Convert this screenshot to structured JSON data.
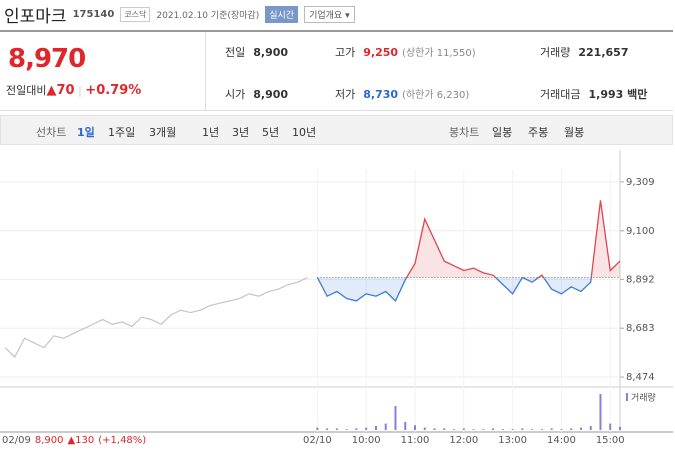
{
  "header": {
    "name": "인포마크",
    "code": "175140",
    "market": "코스닥",
    "date": "2021.02.10 기준(장마감)",
    "realtime": "실시간",
    "overview": "기업개요"
  },
  "quote": {
    "price": "8,970",
    "change_label": "전일대비",
    "change": "▲70",
    "rate": "+0.79%"
  },
  "stats": [
    {
      "label": "전일",
      "value": "8,900"
    },
    {
      "label": "고가",
      "value": "9,250",
      "note": "(상한가 11,550)"
    },
    {
      "label": "거래량",
      "value": "221,657"
    },
    {
      "label": "시가",
      "value": "8,900"
    },
    {
      "label": "저가",
      "value": "8,730",
      "note": "(하한가 6,230)"
    },
    {
      "label": "거래대금",
      "value": "1,993 백만"
    }
  ],
  "tabs": {
    "line_label": "선차트",
    "line": [
      "1일",
      "1주일",
      "3개월",
      "1년",
      "3년",
      "5년",
      "10년"
    ],
    "candle_label": "봉차트",
    "candle": [
      "일봉",
      "주봉",
      "월봉"
    ]
  },
  "chart_data": {
    "type": "line",
    "categories": [
      null,
      null,
      null,
      null,
      null,
      null,
      null,
      null,
      null,
      null,
      null,
      null,
      null,
      null,
      null,
      null,
      null,
      null,
      null,
      null,
      null,
      null,
      null,
      null,
      null,
      null,
      null,
      null,
      null,
      null,
      null,
      null,
      "02/10",
      null,
      null,
      null,
      null,
      "10:00",
      null,
      null,
      null,
      null,
      "11:00",
      null,
      null,
      null,
      null,
      "12:00",
      null,
      null,
      null,
      null,
      "13:00",
      null,
      null,
      null,
      null,
      "14:00",
      null,
      null,
      null,
      null,
      "15:00",
      null
    ],
    "series": [
      {
        "color": "#c4c4c4",
        "values": [
          8600,
          8560,
          8640,
          8620,
          8600,
          8650,
          8640,
          8660,
          8680,
          8700,
          8720,
          8700,
          8710,
          8690,
          8730,
          8720,
          8700,
          8740,
          8760,
          8750,
          8760,
          8780,
          8790,
          8800,
          8810,
          8830,
          8820,
          8840,
          8850,
          8870,
          8880,
          8900,
          null,
          null,
          null,
          null,
          null,
          null,
          null,
          null,
          null,
          null,
          null,
          null,
          null,
          null,
          null,
          null,
          null,
          null,
          null,
          null,
          null,
          null,
          null,
          null,
          null,
          null,
          null,
          null,
          null,
          null,
          null,
          null
        ]
      },
      {
        "color": "#e0464e",
        "down_color": "#3d7bd6",
        "values": [
          null,
          null,
          null,
          null,
          null,
          null,
          null,
          null,
          null,
          null,
          null,
          null,
          null,
          null,
          null,
          null,
          null,
          null,
          null,
          null,
          null,
          null,
          null,
          null,
          null,
          null,
          null,
          null,
          null,
          null,
          null,
          null,
          8900,
          8820,
          8840,
          8810,
          8800,
          8830,
          8820,
          8840,
          8800,
          8890,
          8960,
          9150,
          9060,
          8970,
          8950,
          8930,
          8940,
          8920,
          8910,
          8870,
          8830,
          8900,
          8880,
          8910,
          8850,
          8830,
          8860,
          8840,
          8880,
          9230,
          8930,
          8970
        ]
      }
    ],
    "baseline": 8900,
    "ylim": [
      8440,
      9360
    ],
    "yticks": [
      {
        "value": 8474,
        "label": "8,474"
      },
      {
        "value": 8683,
        "label": "8,683"
      },
      {
        "value": 8892,
        "label": "8,892"
      },
      {
        "value": 9100,
        "label": "9,100"
      },
      {
        "value": 9309,
        "label": "9,309"
      }
    ],
    "grid": true,
    "volume": {
      "label": "거래량",
      "color": "#8b7fd6",
      "ylim": [
        0,
        50
      ],
      "values": [
        0,
        0,
        0,
        0,
        0,
        0,
        0,
        0,
        0,
        0,
        0,
        0,
        0,
        0,
        0,
        0,
        0,
        0,
        0,
        0,
        0,
        0,
        0,
        0,
        0,
        0,
        0,
        0,
        0,
        0,
        0,
        0,
        3,
        2,
        2,
        1,
        2,
        3,
        5,
        8,
        30,
        10,
        6,
        3,
        2,
        2,
        1,
        2,
        1,
        1,
        2,
        1,
        1,
        2,
        1,
        1,
        2,
        1,
        2,
        3,
        5,
        45,
        8,
        4
      ]
    },
    "prev_summary": {
      "date": "02/09",
      "price": "8,900",
      "change": "▲130",
      "rate": "(+1,48%)"
    }
  }
}
